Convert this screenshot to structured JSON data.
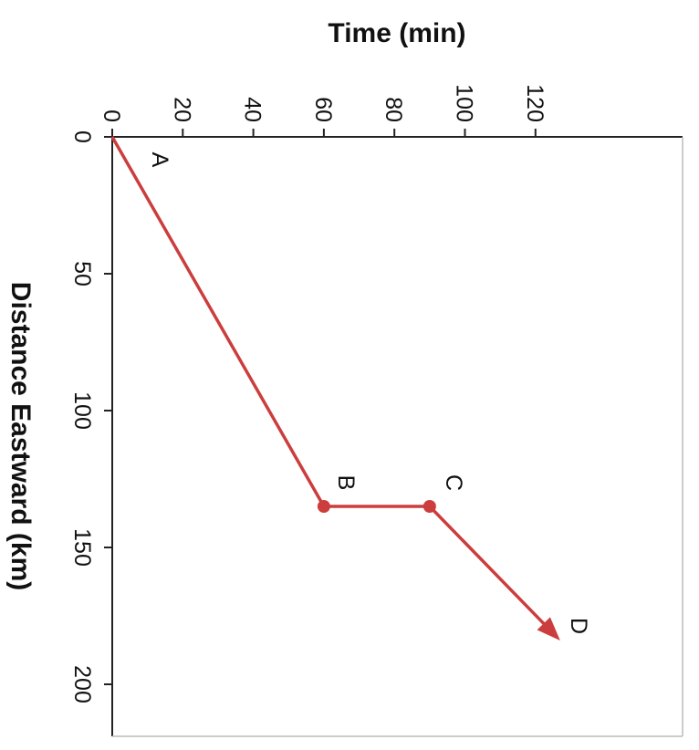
{
  "chart_data": {
    "type": "line",
    "xlabel": "Time (min)",
    "ylabel": "Distance Eastward (km)",
    "xlim": [
      0,
      137
    ],
    "ylim": [
      0,
      219
    ],
    "x_ticks": [
      "0",
      "20",
      "40",
      "60",
      "80",
      "100",
      "120"
    ],
    "y_ticks": [
      "0",
      "50",
      "100",
      "150",
      "200"
    ],
    "grid": false,
    "color": "#cc3d3d",
    "points": [
      {
        "label": "A",
        "x": 0,
        "y": 0,
        "marker": false
      },
      {
        "label": "B",
        "x": 60,
        "y": 135,
        "marker": true
      },
      {
        "label": "C",
        "x": 90,
        "y": 135,
        "marker": true
      },
      {
        "label": "D",
        "x": 127,
        "y": 184,
        "marker": false,
        "arrow": true
      }
    ]
  }
}
